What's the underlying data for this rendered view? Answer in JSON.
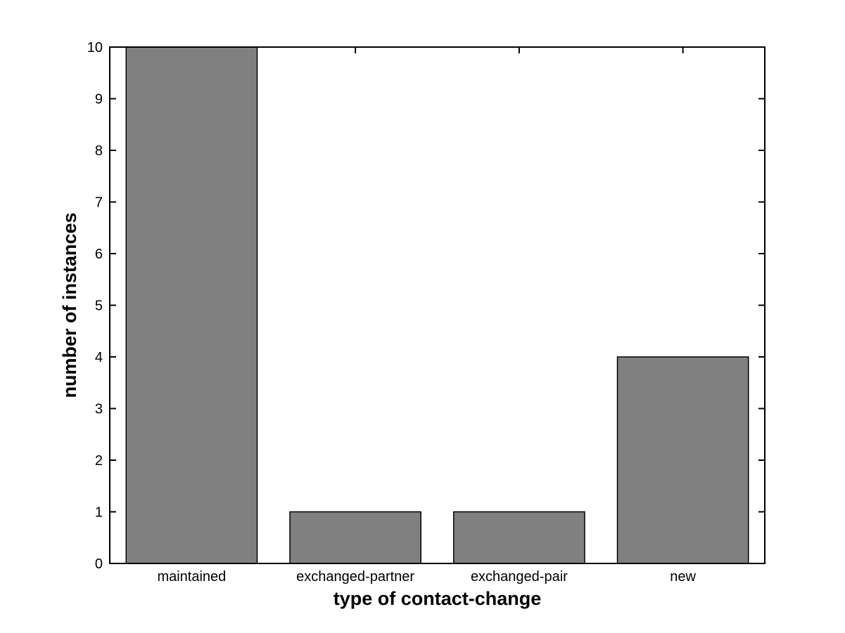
{
  "figure": {
    "background": "#ffffff"
  },
  "chart_data": {
    "type": "bar",
    "title": "",
    "categories": [
      "maintained",
      "exchanged-partner",
      "exchanged-pair",
      "new"
    ],
    "values": [
      10,
      1,
      1,
      4
    ],
    "xlabel": "type of contact-change",
    "ylabel": "number of instances",
    "ylim": [
      0,
      10
    ],
    "yticks": [
      0,
      1,
      2,
      3,
      4,
      5,
      6,
      7,
      8,
      9,
      10
    ],
    "ytick_labels": [
      "0",
      "1",
      "2",
      "3",
      "4",
      "5",
      "6",
      "7",
      "8",
      "9",
      "10"
    ],
    "bar_width_fraction": 0.8,
    "bar_color": "#808080",
    "bar_edge_color": "#000000",
    "axis_color": "#000000",
    "text_color": "#000000",
    "grid": false,
    "legend": null
  }
}
